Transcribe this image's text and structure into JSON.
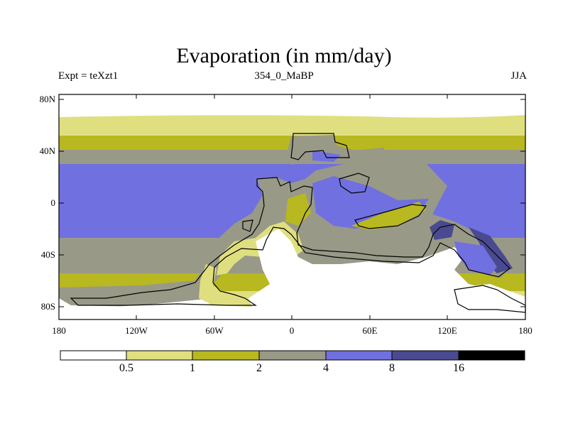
{
  "map": {
    "title": "Evaporation (in mm/day)",
    "subtitle_left": "Expt = teXzt1",
    "subtitle_center": "354_0_MaBP",
    "subtitle_right": "JJA",
    "lat_labels": [
      "80N",
      "40N",
      "0",
      "40S",
      "80S"
    ],
    "lon_labels": [
      "180",
      "120W",
      "60W",
      "0",
      "60E",
      "120E",
      "180"
    ]
  },
  "legend": {
    "levels": [
      "0.5",
      "1",
      "2",
      "4",
      "8",
      "16"
    ],
    "colors": [
      "#ffffff",
      "#dfdf80",
      "#b8b820",
      "#999988",
      "#7070e0",
      "#4a4a90",
      "#000000"
    ]
  }
}
